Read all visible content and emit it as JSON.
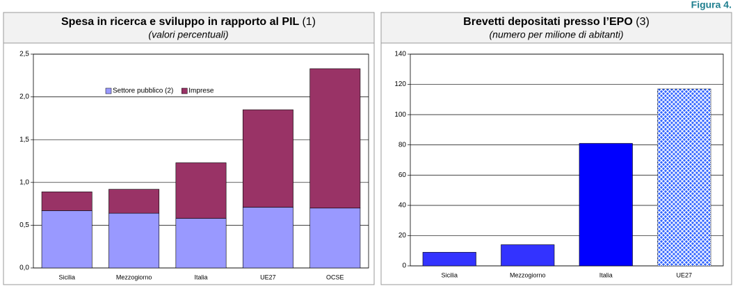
{
  "figure_label": "Figura 4.",
  "chart_data": [
    {
      "type": "bar",
      "stacked": true,
      "title": "Spesa in ricerca e sviluppo in rapporto al PIL",
      "title_note": "(1)",
      "subtitle": "(valori percentuali)",
      "categories": [
        "Sicilia",
        "Mezzogiorno",
        "Italia",
        "UE27",
        "OCSE"
      ],
      "series": [
        {
          "name": "Settore pubblico (2)",
          "color": "#9999ff",
          "values": [
            0.67,
            0.64,
            0.58,
            0.71,
            0.7
          ]
        },
        {
          "name": "Imprese",
          "color": "#993366",
          "values": [
            0.22,
            0.28,
            0.65,
            1.14,
            1.63
          ]
        }
      ],
      "ylim": [
        0,
        2.5
      ],
      "yticks": [
        {
          "value": 0,
          "label": "0,0"
        },
        {
          "value": 0.5,
          "label": "0,5"
        },
        {
          "value": 1,
          "label": "1,0"
        },
        {
          "value": 1.5,
          "label": "1,5"
        },
        {
          "value": 2,
          "label": "2,0"
        },
        {
          "value": 2.5,
          "label": "2,5"
        }
      ],
      "grid": true,
      "legend": "top"
    },
    {
      "type": "bar",
      "title": "Brevetti depositati presso l’EPO",
      "title_note": "(3)",
      "subtitle": "(numero per milione di abitanti)",
      "categories": [
        "Sicilia",
        "Mezzogiorno",
        "Italia",
        "UE27"
      ],
      "values": [
        9,
        14,
        81,
        117
      ],
      "colors": [
        "#3333ff",
        "#3333ff",
        "#0000ff",
        "#3366ff"
      ],
      "patterns": [
        null,
        null,
        null,
        "crosshatch"
      ],
      "ylim": [
        0,
        140
      ],
      "yticks": [
        0,
        20,
        40,
        60,
        80,
        100,
        120,
        140
      ],
      "grid": true
    }
  ]
}
